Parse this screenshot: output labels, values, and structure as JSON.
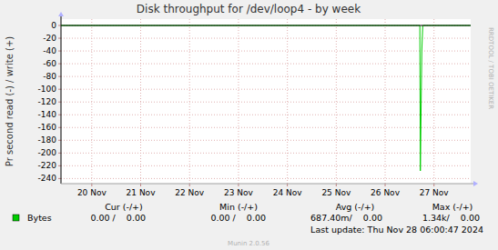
{
  "chart_data": {
    "type": "line",
    "title": "Disk throughput for /dev/loop4 - by week",
    "y_label": "Pr second read (-) / write (+)",
    "credit": "RRDTOOL / TOBI OETIKER",
    "x": [
      19.87,
      27.21,
      27.22,
      27.25,
      27.27,
      28.25
    ],
    "series": [
      {
        "name": "Bytes",
        "color": "#00cc00",
        "values": [
          0,
          0,
          -228,
          -40,
          0,
          0
        ]
      }
    ],
    "xlim": [
      19.87,
      28.25
    ],
    "xticks": [
      {
        "value": 20.5,
        "label": "20 Nov"
      },
      {
        "value": 21.5,
        "label": "21 Nov"
      },
      {
        "value": 22.5,
        "label": "22 Nov"
      },
      {
        "value": 23.5,
        "label": "23 Nov"
      },
      {
        "value": 24.5,
        "label": "24 Nov"
      },
      {
        "value": 25.5,
        "label": "25 Nov"
      },
      {
        "value": 26.5,
        "label": "26 Nov"
      },
      {
        "value": 27.5,
        "label": "27 Nov"
      }
    ],
    "ylim": [
      -248,
      10
    ],
    "yticks": [
      0,
      -20,
      -40,
      -60,
      -80,
      -100,
      -120,
      -140,
      -160,
      -180,
      -200,
      -220,
      -240
    ],
    "grid": true,
    "legend_stats": {
      "headers": [
        "Cur (-/+)",
        "Min (-/+)",
        "Avg (-/+)",
        "Max (-/+)"
      ],
      "rows": [
        [
          "0.00 /    0.00",
          "0.00 /    0.00",
          "687.40m/    0.00",
          "1.34k/    0.00"
        ]
      ]
    },
    "last_update": "Last update: Thu Nov 28 06:00:47 2024",
    "footer": "Munin 2.0.56"
  }
}
